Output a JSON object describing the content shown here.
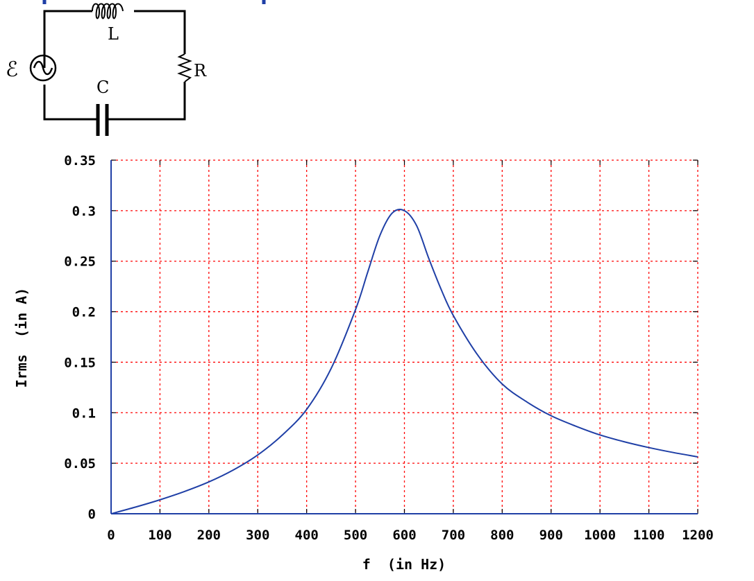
{
  "circuit": {
    "inductor_label": "L",
    "capacitor_label": "C",
    "resistor_label": "R",
    "emf_label": "ℰ",
    "wire_color": "#000000",
    "accent_color": "#1f3fa6"
  },
  "chart_data": {
    "type": "line",
    "title": "",
    "xlabel": "f  (in Hz)",
    "ylabel": "Irms  (in A)",
    "xlim": [
      0,
      1200
    ],
    "ylim": [
      0,
      0.35
    ],
    "x_ticks": [
      "0",
      "100",
      "200",
      "300",
      "400",
      "500",
      "600",
      "700",
      "800",
      "900",
      "1000",
      "1100",
      "1200"
    ],
    "y_ticks": [
      "0",
      "0.05",
      "0.1",
      "0.15",
      "0.2",
      "0.25",
      "0.3",
      "0.35"
    ],
    "grid": true,
    "grid_color": "#ff0000",
    "line_color": "#1f3fa6",
    "series": [
      {
        "x": [
          0,
          50,
          100,
          150,
          200,
          250,
          300,
          350,
          400,
          450,
          500,
          525,
          550,
          575,
          600,
          625,
          650,
          675,
          700,
          750,
          800,
          850,
          900,
          950,
          1000,
          1050,
          1100,
          1150,
          1200
        ],
        "values": [
          0,
          0.0066,
          0.0138,
          0.022,
          0.0315,
          0.0433,
          0.0582,
          0.0778,
          0.1033,
          0.1437,
          0.2021,
          0.2393,
          0.2756,
          0.2976,
          0.3,
          0.2851,
          0.2525,
          0.2222,
          0.1962,
          0.157,
          0.1284,
          0.1108,
          0.097,
          0.0868,
          0.078,
          0.0712,
          0.0655,
          0.0606,
          0.0563
        ]
      }
    ]
  }
}
